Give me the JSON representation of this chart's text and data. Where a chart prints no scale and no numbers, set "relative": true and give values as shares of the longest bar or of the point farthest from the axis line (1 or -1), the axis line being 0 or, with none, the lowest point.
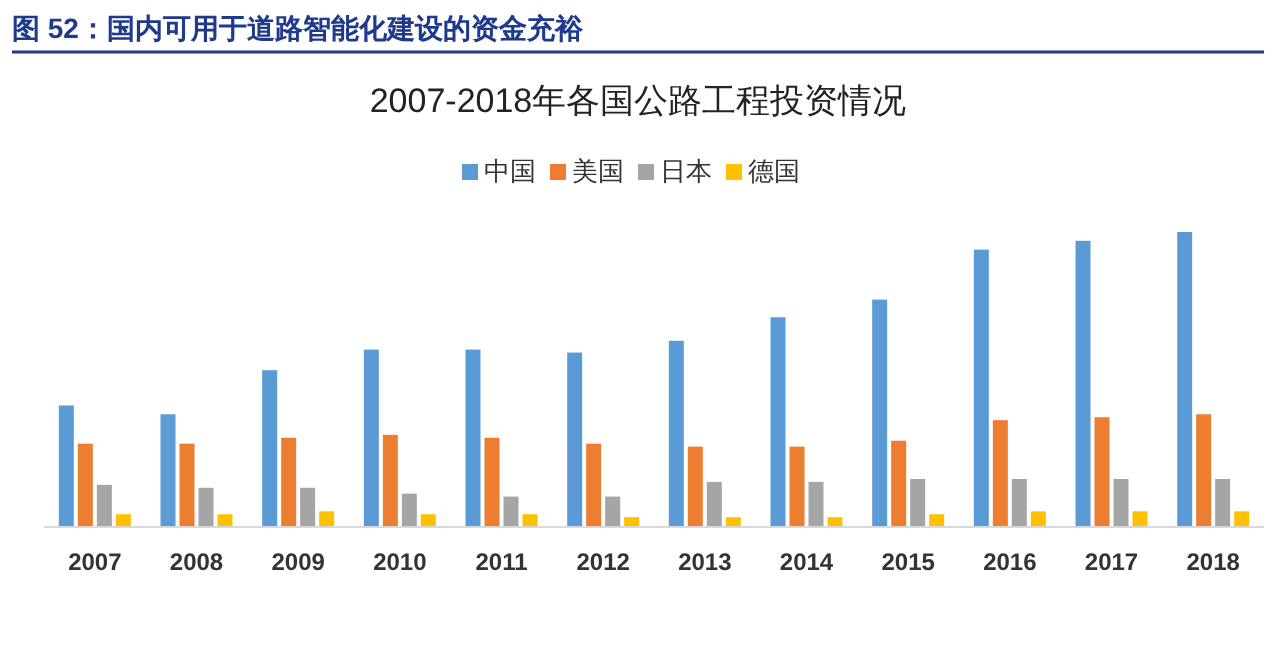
{
  "chart_data": {
    "type": "bar",
    "title": "图 52：国内可用于道路智能化建设的资金充裕",
    "subtitle": "2007-2018年各国公路工程投资情况",
    "categories": [
      "2007",
      "2008",
      "2009",
      "2010",
      "2011",
      "2012",
      "2013",
      "2014",
      "2015",
      "2016",
      "2017",
      "2018"
    ],
    "relative": true,
    "legend": "top",
    "series": [
      {
        "name": "中国",
        "color": "#5b9bd5",
        "values": [
          0.41,
          0.38,
          0.53,
          0.6,
          0.6,
          0.59,
          0.63,
          0.71,
          0.77,
          0.94,
          0.97,
          1
        ]
      },
      {
        "name": "美国",
        "color": "#ed7d31",
        "values": [
          0.28,
          0.28,
          0.3,
          0.31,
          0.3,
          0.28,
          0.27,
          0.27,
          0.29,
          0.36,
          0.37,
          0.38
        ]
      },
      {
        "name": "日本",
        "color": "#a5a5a5",
        "values": [
          0.14,
          0.13,
          0.13,
          0.11,
          0.1,
          0.1,
          0.15,
          0.15,
          0.16,
          0.16,
          0.16,
          0.16
        ]
      },
      {
        "name": "德国",
        "color": "#ffc000",
        "values": [
          0.04,
          0.04,
          0.05,
          0.04,
          0.04,
          0.03,
          0.03,
          0.03,
          0.04,
          0.05,
          0.05,
          0.05
        ]
      }
    ]
  }
}
